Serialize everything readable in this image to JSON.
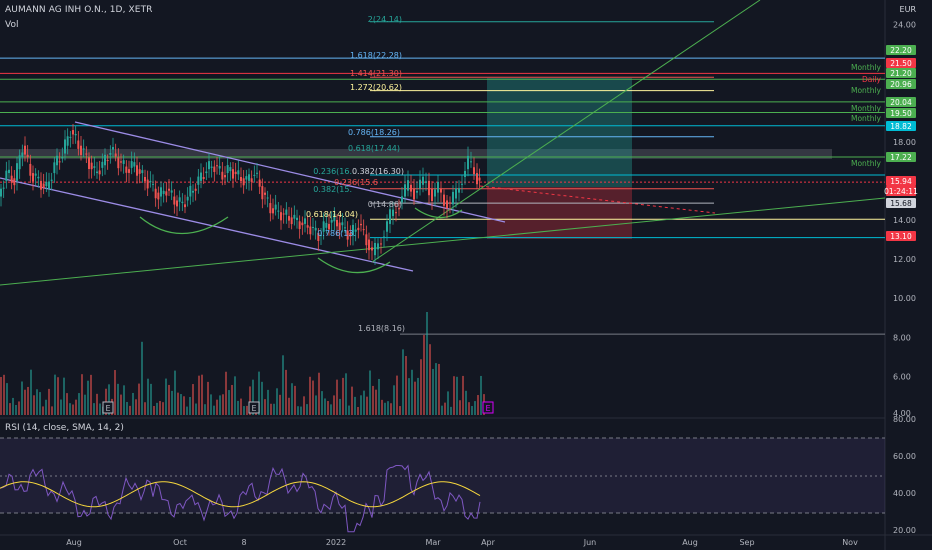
{
  "header": {
    "symbol_line": "AUMANN AG INH O.N., 1D, XETR",
    "volume_label": "Vol",
    "currency": "EUR"
  },
  "rsi": {
    "header": "RSI (14, close, SMA, 14, 2)",
    "ticks": [
      "80.00",
      "60.00",
      "40.00",
      "20.00"
    ]
  },
  "price_axis": {
    "ticks": [
      "24.00",
      "22.00",
      "20.00",
      "18.00",
      "16.00",
      "14.00",
      "12.00",
      "10.00",
      "8.00",
      "6.00",
      "4.00"
    ]
  },
  "price_badges": [
    {
      "text": "22.20",
      "color": "#4caf50"
    },
    {
      "text": "21.50",
      "color": "#f23645"
    },
    {
      "text": "21.20",
      "color": "#4caf50"
    },
    {
      "text": "20.96",
      "color": "#4caf50"
    },
    {
      "text": "20.04",
      "color": "#4caf50"
    },
    {
      "text": "19.50",
      "color": "#4caf50"
    },
    {
      "text": "18.82",
      "color": "#00bcd4"
    },
    {
      "text": "17.22",
      "color": "#4caf50"
    },
    {
      "text": "15.94",
      "color": "#f23645"
    },
    {
      "text": "01:24:11",
      "color": "#f23645"
    },
    {
      "text": "15.68",
      "color": "#d1d4dc"
    },
    {
      "text": "13.10",
      "color": "#f23645"
    }
  ],
  "level_labels": [
    {
      "text": "Monthly",
      "color": "#4caf50"
    },
    {
      "text": "Daily",
      "color": "#f23645"
    },
    {
      "text": "Monthly",
      "color": "#4caf50"
    },
    {
      "text": "Monthly",
      "color": "#4caf50"
    },
    {
      "text": "Monthly",
      "color": "#4caf50"
    },
    {
      "text": "Monthly",
      "color": "#4caf50"
    }
  ],
  "fib_labels": [
    {
      "text": "2(24.14)",
      "color": "#26a69a"
    },
    {
      "text": "1.618(22.28)",
      "color": "#64b5f6"
    },
    {
      "text": "1.414(21.30)",
      "color": "#ef5350"
    },
    {
      "text": "1.272(20.62)",
      "color": "#fff59d"
    },
    {
      "text": "0.786(18.26)",
      "color": "#64b5f6"
    },
    {
      "text": "0.618(17.44)",
      "color": "#26a69a"
    },
    {
      "text": "0.382(16.30)",
      "color": "#d1d4dc"
    },
    {
      "text": "0.236(16.",
      "color": "#26a69a"
    },
    {
      "text": "0.236(15.6",
      "color": "#ef5350"
    },
    {
      "text": "0.382(15.",
      "color": "#26a69a"
    },
    {
      "text": "0(14.86)",
      "color": "#b2b5be"
    },
    {
      "text": "0.618(14.04)",
      "color": "#fff59d"
    },
    {
      "text": "0.786(13.",
      "color": "#64b5f6"
    },
    {
      "text": "1.618(8.16)",
      "color": "#b2b5be"
    }
  ],
  "time_axis": {
    "ticks": [
      "Aug",
      "Oct",
      "8",
      "2022",
      "Mar",
      "Apr",
      "Jun",
      "Aug",
      "Sep",
      "Nov"
    ]
  },
  "earnings_markers": [
    "E",
    "E",
    "E"
  ]
}
